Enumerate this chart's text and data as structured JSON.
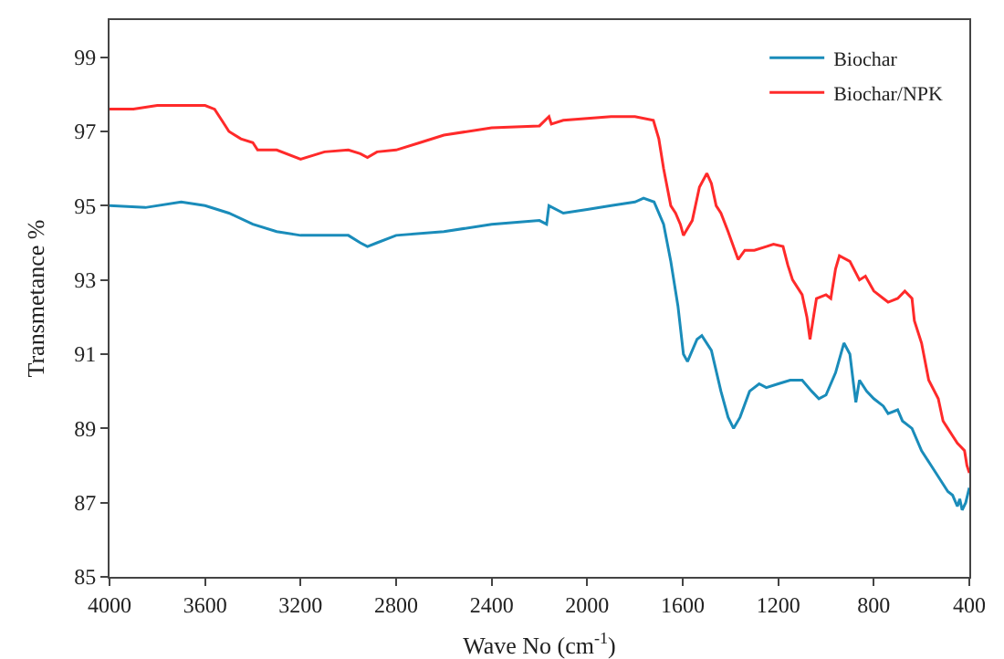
{
  "chart_data": {
    "type": "line",
    "xlabel": "Wave No (cm$^{-1}$)",
    "ylabel": "Transmetance %",
    "xlim": [
      4000,
      400
    ],
    "xticks": [
      4000,
      3600,
      3200,
      2800,
      2400,
      2000,
      1600,
      1200,
      800,
      400
    ],
    "ylim": [
      85,
      100
    ],
    "yticks": [
      85,
      87,
      89,
      91,
      93,
      95,
      97,
      99
    ],
    "grid": false,
    "legend": "top right",
    "marker": "none",
    "line_style": "solid",
    "series": [
      {
        "name": "Biochar",
        "color": "#1a8cba",
        "x": [
          4000,
          3850,
          3700,
          3600,
          3500,
          3400,
          3300,
          3200,
          3000,
          2950,
          2920,
          2880,
          2800,
          2600,
          2400,
          2200,
          2170,
          2160,
          2100,
          2000,
          1900,
          1800,
          1764,
          1720,
          1680,
          1650,
          1620,
          1597,
          1580,
          1540,
          1520,
          1480,
          1440,
          1410,
          1387,
          1360,
          1320,
          1280,
          1250,
          1200,
          1150,
          1100,
          1060,
          1030,
          1000,
          960,
          925,
          900,
          885,
          875,
          860,
          830,
          800,
          760,
          740,
          700,
          680,
          640,
          600,
          560,
          520,
          490,
          470,
          450,
          440,
          430,
          415,
          400
        ],
        "values": [
          95.0,
          94.95,
          95.1,
          95.0,
          94.8,
          94.5,
          94.3,
          94.2,
          94.2,
          94.0,
          93.9,
          94.0,
          94.2,
          94.3,
          94.5,
          94.6,
          94.5,
          95.0,
          94.8,
          94.9,
          95.0,
          95.1,
          95.2,
          95.1,
          94.5,
          93.5,
          92.3,
          91.0,
          90.8,
          91.4,
          91.5,
          91.1,
          90.0,
          89.3,
          89.0,
          89.3,
          90.0,
          90.2,
          90.1,
          90.2,
          90.3,
          90.3,
          90.0,
          89.8,
          89.9,
          90.5,
          91.3,
          91.0,
          90.2,
          89.7,
          90.3,
          90.0,
          89.8,
          89.6,
          89.4,
          89.5,
          89.2,
          89.0,
          88.4,
          88.0,
          87.6,
          87.3,
          87.2,
          86.9,
          87.1,
          86.8,
          87.0,
          87.4
        ]
      },
      {
        "name": "Biochar/NPK",
        "color": "#ff2a2a",
        "x": [
          4000,
          3900,
          3800,
          3700,
          3600,
          3560,
          3530,
          3500,
          3450,
          3400,
          3380,
          3300,
          3200,
          3100,
          3000,
          2950,
          2920,
          2880,
          2800,
          2700,
          2600,
          2400,
          2200,
          2160,
          2150,
          2100,
          2000,
          1900,
          1800,
          1723,
          1700,
          1680,
          1650,
          1630,
          1610,
          1597,
          1560,
          1530,
          1499,
          1480,
          1460,
          1440,
          1410,
          1368,
          1340,
          1300,
          1250,
          1220,
          1180,
          1160,
          1140,
          1100,
          1080,
          1067,
          1050,
          1040,
          1000,
          980,
          960,
          944,
          900,
          860,
          835,
          800,
          760,
          740,
          700,
          670,
          640,
          630,
          600,
          570,
          530,
          510,
          490,
          470,
          450,
          420,
          410,
          400
        ],
        "values": [
          97.6,
          97.6,
          97.7,
          97.7,
          97.7,
          97.6,
          97.3,
          97.0,
          96.8,
          96.7,
          96.5,
          96.5,
          96.25,
          96.45,
          96.5,
          96.4,
          96.3,
          96.45,
          96.5,
          96.7,
          96.9,
          97.1,
          97.15,
          97.4,
          97.2,
          97.3,
          97.35,
          97.4,
          97.4,
          97.3,
          96.8,
          96.0,
          95.0,
          94.8,
          94.5,
          94.2,
          94.6,
          95.5,
          95.87,
          95.6,
          95.0,
          94.8,
          94.3,
          93.55,
          93.8,
          93.8,
          93.9,
          93.96,
          93.9,
          93.4,
          93.0,
          92.6,
          92.0,
          91.4,
          92.1,
          92.5,
          92.6,
          92.5,
          93.3,
          93.65,
          93.5,
          93.0,
          93.1,
          92.7,
          92.5,
          92.4,
          92.5,
          92.7,
          92.5,
          91.9,
          91.3,
          90.3,
          89.8,
          89.2,
          89.0,
          88.8,
          88.6,
          88.4,
          88.0,
          87.8
        ]
      }
    ]
  }
}
